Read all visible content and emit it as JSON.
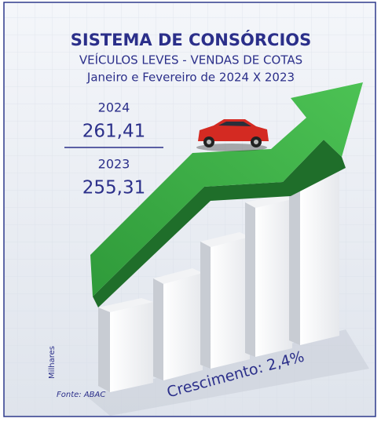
{
  "header": {
    "title": "SISTEMA DE CONSÓRCIOS",
    "subtitle": "VEÍCULOS LEVES - VENDAS DE COTAS",
    "period": "Janeiro e Fevereiro de 2024 X 2023"
  },
  "comparison": {
    "current": {
      "year": "2024",
      "value": "261,41"
    },
    "previous": {
      "year": "2023",
      "value": "255,31"
    }
  },
  "unit": "Milhares",
  "source": "Fonte: ABAC",
  "growth": "Crescimento: 2,4%"
}
